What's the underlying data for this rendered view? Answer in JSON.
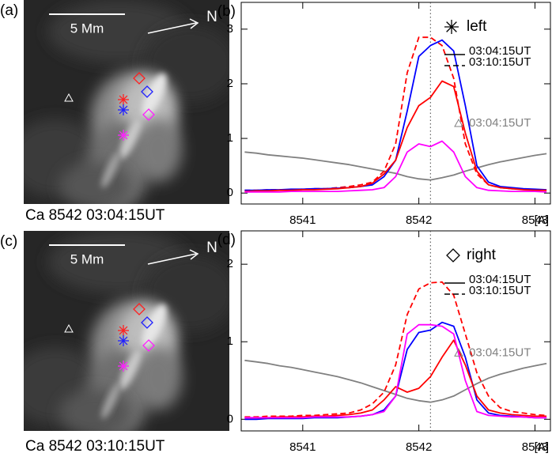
{
  "images": [
    {
      "panel_label": "(a)",
      "caption": "Ca 8542 03:04:15UT",
      "scale": "5 Mm",
      "north": "N"
    },
    {
      "panel_label": "(c)",
      "caption": "Ca 8542 03:10:15UT",
      "scale": "5 Mm",
      "north": "N"
    }
  ],
  "chart_data": [
    {
      "type": "line",
      "panel_label": "(b)",
      "xlabel": "[A]",
      "x": [
        8540.5,
        8540.6,
        8540.7,
        8540.8,
        8540.9,
        8541.0,
        8541.1,
        8541.2,
        8541.3,
        8541.4,
        8541.5,
        8541.6,
        8541.7,
        8541.8,
        8541.9,
        8542.0,
        8542.1,
        8542.2,
        8542.3,
        8542.4,
        8542.5,
        8542.6,
        8542.7,
        8542.8,
        8542.9,
        8543.0,
        8543.1
      ],
      "xlim": [
        8540.47,
        8543.14
      ],
      "xticks": [
        8541,
        8542,
        8543
      ],
      "ylim": [
        -0.2,
        3.49
      ],
      "yticks": [
        0,
        1,
        2,
        3
      ],
      "vline": 8542.1,
      "legend": {
        "title": "left",
        "symbol": "asterisk",
        "entries": [
          {
            "label": "03:04:15UT",
            "dash": "solid"
          },
          {
            "label": "03:10:15UT",
            "dash": "dashed"
          }
        ],
        "background_label": "03:04:15UT"
      },
      "series": [
        {
          "color": "#808080",
          "dash": "solid",
          "values": [
            0.75,
            0.73,
            0.7,
            0.68,
            0.66,
            0.64,
            0.61,
            0.58,
            0.55,
            0.52,
            0.48,
            0.44,
            0.4,
            0.36,
            0.3,
            0.26,
            0.24,
            0.28,
            0.33,
            0.4,
            0.46,
            0.52,
            0.57,
            0.61,
            0.65,
            0.69,
            0.72
          ]
        },
        {
          "color": "#ff0000",
          "dash": "dashed",
          "values": [
            0.05,
            0.05,
            0.06,
            0.06,
            0.06,
            0.07,
            0.08,
            0.08,
            0.1,
            0.12,
            0.15,
            0.2,
            0.4,
            0.9,
            2.2,
            2.85,
            2.85,
            2.7,
            2.1,
            0.9,
            0.35,
            0.15,
            0.1,
            0.08,
            0.07,
            0.06,
            0.05
          ]
        },
        {
          "color": "#0000ff",
          "dash": "solid",
          "values": [
            0.05,
            0.05,
            0.06,
            0.06,
            0.07,
            0.07,
            0.08,
            0.08,
            0.09,
            0.1,
            0.12,
            0.15,
            0.3,
            0.6,
            1.5,
            2.5,
            2.7,
            2.8,
            2.6,
            1.6,
            0.5,
            0.2,
            0.12,
            0.1,
            0.08,
            0.07,
            0.06
          ]
        },
        {
          "color": "#ff0000",
          "dash": "solid",
          "values": [
            0.03,
            0.04,
            0.04,
            0.05,
            0.05,
            0.06,
            0.06,
            0.07,
            0.08,
            0.1,
            0.12,
            0.18,
            0.35,
            0.6,
            1.2,
            1.6,
            1.75,
            2.05,
            1.95,
            1.1,
            0.4,
            0.15,
            0.1,
            0.08,
            0.06,
            0.05,
            0.05
          ]
        },
        {
          "color": "#ff00ff",
          "dash": "solid",
          "values": [
            0.02,
            0.02,
            0.02,
            0.02,
            0.03,
            0.03,
            0.03,
            0.03,
            0.03,
            0.04,
            0.05,
            0.06,
            0.1,
            0.3,
            0.75,
            0.9,
            0.85,
            0.95,
            0.75,
            0.3,
            0.1,
            0.05,
            0.04,
            0.03,
            0.03,
            0.03,
            0.02
          ]
        }
      ]
    },
    {
      "type": "line",
      "panel_label": "(d)",
      "xlabel": "[A]",
      "x": [
        8540.5,
        8540.6,
        8540.7,
        8540.8,
        8540.9,
        8541.0,
        8541.1,
        8541.2,
        8541.3,
        8541.4,
        8541.5,
        8541.6,
        8541.7,
        8541.8,
        8541.9,
        8542.0,
        8542.1,
        8542.2,
        8542.3,
        8542.4,
        8542.5,
        8542.6,
        8542.7,
        8542.8,
        8542.9,
        8543.0,
        8543.1
      ],
      "xlim": [
        8540.47,
        8543.14
      ],
      "xticks": [
        8541,
        8542,
        8543
      ],
      "ylim": [
        -0.15,
        2.43
      ],
      "yticks": [
        0,
        1,
        2
      ],
      "vline": 8542.1,
      "legend": {
        "title": "right",
        "symbol": "diamond",
        "entries": [
          {
            "label": "03:04:15UT",
            "dash": "solid"
          },
          {
            "label": "03:10:15UT",
            "dash": "dashed"
          }
        ],
        "background_label": "03:04:15UT"
      },
      "series": [
        {
          "color": "#808080",
          "dash": "solid",
          "values": [
            0.76,
            0.74,
            0.72,
            0.69,
            0.67,
            0.64,
            0.61,
            0.58,
            0.55,
            0.51,
            0.47,
            0.42,
            0.37,
            0.32,
            0.27,
            0.24,
            0.22,
            0.25,
            0.3,
            0.38,
            0.46,
            0.53,
            0.58,
            0.62,
            0.66,
            0.69,
            0.72
          ]
        },
        {
          "color": "#ff0000",
          "dash": "dashed",
          "values": [
            0.03,
            0.03,
            0.04,
            0.04,
            0.04,
            0.05,
            0.05,
            0.06,
            0.07,
            0.08,
            0.12,
            0.2,
            0.35,
            0.7,
            1.35,
            1.68,
            1.76,
            1.77,
            1.6,
            1.1,
            0.6,
            0.3,
            0.15,
            0.1,
            0.08,
            0.06,
            0.05
          ]
        },
        {
          "color": "#0000ff",
          "dash": "solid",
          "values": [
            0.0,
            0.0,
            0.01,
            0.01,
            0.01,
            0.01,
            0.02,
            0.02,
            0.02,
            0.03,
            0.04,
            0.06,
            0.12,
            0.3,
            0.9,
            1.12,
            1.15,
            1.25,
            1.2,
            0.8,
            0.25,
            0.08,
            0.05,
            0.04,
            0.03,
            0.02,
            0.02
          ]
        },
        {
          "color": "#ff0000",
          "dash": "solid",
          "values": [
            0.02,
            0.02,
            0.02,
            0.03,
            0.03,
            0.03,
            0.04,
            0.04,
            0.05,
            0.06,
            0.08,
            0.12,
            0.25,
            0.42,
            0.35,
            0.4,
            0.55,
            0.8,
            1.02,
            0.7,
            0.3,
            0.12,
            0.08,
            0.06,
            0.05,
            0.04,
            0.04
          ]
        },
        {
          "color": "#ff00ff",
          "dash": "solid",
          "values": [
            0.02,
            0.02,
            0.02,
            0.02,
            0.02,
            0.02,
            0.03,
            0.03,
            0.03,
            0.03,
            0.04,
            0.06,
            0.1,
            0.3,
            1.1,
            1.22,
            1.22,
            1.2,
            1.1,
            0.5,
            0.1,
            0.05,
            0.04,
            0.03,
            0.03,
            0.02,
            0.02
          ]
        }
      ]
    }
  ]
}
